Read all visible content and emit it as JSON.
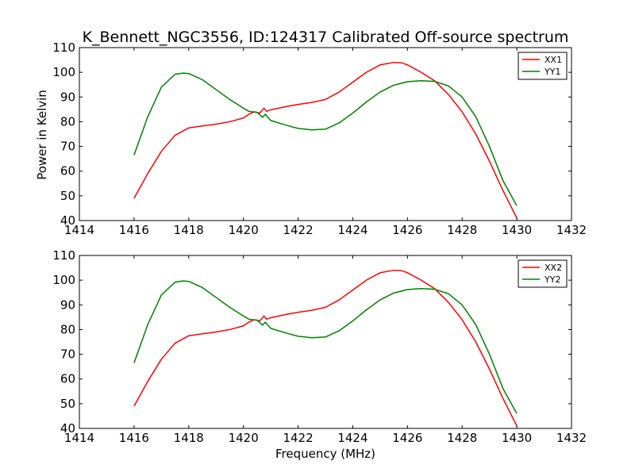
{
  "chart_data": [
    {
      "type": "line",
      "title": "K_Bennett_NGC3556, ID:124317 Calibrated Off-source spectrum",
      "xlabel": "",
      "ylabel": "Power in Kelvin",
      "xlim": [
        1414,
        1432
      ],
      "ylim": [
        40,
        110
      ],
      "xticks": [
        "1414",
        "1416",
        "1418",
        "1420",
        "1422",
        "1424",
        "1426",
        "1428",
        "1430",
        "1432"
      ],
      "yticks": [
        "40",
        "50",
        "60",
        "70",
        "80",
        "90",
        "100",
        "110"
      ],
      "legend_position": "top-right",
      "series": [
        {
          "name": "XX1",
          "color": "#ff0000",
          "x": [
            1416.0,
            1416.5,
            1417.0,
            1417.5,
            1418.0,
            1418.5,
            1419.0,
            1419.5,
            1420.0,
            1420.2,
            1420.4,
            1420.6,
            1420.75,
            1420.85,
            1421.0,
            1421.5,
            1422.0,
            1422.5,
            1423.0,
            1423.5,
            1424.0,
            1424.5,
            1425.0,
            1425.5,
            1425.8,
            1426.0,
            1426.5,
            1427.0,
            1427.5,
            1428.0,
            1428.5,
            1429.0,
            1429.5,
            1430.0
          ],
          "y": [
            49,
            59,
            68,
            74.5,
            77.5,
            78.3,
            79,
            80,
            81.5,
            83,
            84,
            83.5,
            85.5,
            84.2,
            84.8,
            86,
            87,
            87.8,
            89,
            92,
            96,
            100,
            103,
            104,
            103.8,
            103,
            100,
            96.5,
            91,
            84,
            75,
            64,
            52,
            41
          ]
        },
        {
          "name": "YY1",
          "color": "#008000",
          "x": [
            1416.0,
            1416.5,
            1417.0,
            1417.5,
            1417.8,
            1418.0,
            1418.5,
            1419.0,
            1419.5,
            1420.0,
            1420.2,
            1420.5,
            1420.7,
            1420.8,
            1421.0,
            1421.5,
            1422.0,
            1422.5,
            1423.0,
            1423.5,
            1424.0,
            1424.5,
            1425.0,
            1425.5,
            1426.0,
            1426.5,
            1427.0,
            1427.5,
            1428.0,
            1428.5,
            1429.0,
            1429.5,
            1430.0
          ],
          "y": [
            66.5,
            82,
            94,
            99.2,
            99.7,
            99.5,
            97,
            93,
            89,
            85.5,
            84.2,
            83.8,
            81.8,
            83,
            80.5,
            78.8,
            77.3,
            76.7,
            77,
            79.5,
            83.5,
            88,
            92,
            94.8,
            96.2,
            96.6,
            96.3,
            94.5,
            90,
            82,
            70,
            56,
            46
          ]
        }
      ]
    },
    {
      "type": "line",
      "title": "",
      "xlabel": "Frequency (MHz)",
      "ylabel": "",
      "xlim": [
        1414,
        1432
      ],
      "ylim": [
        40,
        110
      ],
      "xticks": [
        "1414",
        "1416",
        "1418",
        "1420",
        "1422",
        "1424",
        "1426",
        "1428",
        "1430",
        "1432"
      ],
      "yticks": [
        "40",
        "50",
        "60",
        "70",
        "80",
        "90",
        "100",
        "110"
      ],
      "legend_position": "top-right",
      "series": [
        {
          "name": "XX2",
          "color": "#ff0000",
          "x": [
            1416.0,
            1416.5,
            1417.0,
            1417.5,
            1418.0,
            1418.5,
            1419.0,
            1419.5,
            1420.0,
            1420.2,
            1420.4,
            1420.6,
            1420.75,
            1420.85,
            1421.0,
            1421.5,
            1422.0,
            1422.5,
            1423.0,
            1423.5,
            1424.0,
            1424.5,
            1425.0,
            1425.5,
            1425.8,
            1426.0,
            1426.5,
            1427.0,
            1427.5,
            1428.0,
            1428.5,
            1429.0,
            1429.5,
            1430.0
          ],
          "y": [
            49,
            59,
            68,
            74.5,
            77.5,
            78.3,
            79,
            80,
            81.5,
            83,
            84,
            83.5,
            85.5,
            84.2,
            84.8,
            86,
            87,
            87.8,
            89,
            92,
            96,
            100,
            103,
            104,
            103.8,
            103,
            100,
            96.5,
            91,
            84,
            75,
            64,
            52,
            41
          ]
        },
        {
          "name": "YY2",
          "color": "#008000",
          "x": [
            1416.0,
            1416.5,
            1417.0,
            1417.5,
            1417.8,
            1418.0,
            1418.5,
            1419.0,
            1419.5,
            1420.0,
            1420.2,
            1420.5,
            1420.7,
            1420.8,
            1421.0,
            1421.5,
            1422.0,
            1422.5,
            1423.0,
            1423.5,
            1424.0,
            1424.5,
            1425.0,
            1425.5,
            1426.0,
            1426.5,
            1427.0,
            1427.5,
            1428.0,
            1428.5,
            1429.0,
            1429.5,
            1430.0
          ],
          "y": [
            66.5,
            82,
            94,
            99.2,
            99.7,
            99.5,
            97,
            93,
            89,
            85.5,
            84.2,
            83.8,
            81.8,
            83,
            80.5,
            78.8,
            77.3,
            76.7,
            77,
            79.5,
            83.5,
            88,
            92,
            94.8,
            96.2,
            96.6,
            96.3,
            94.5,
            90,
            82,
            70,
            56,
            46
          ]
        }
      ]
    }
  ]
}
